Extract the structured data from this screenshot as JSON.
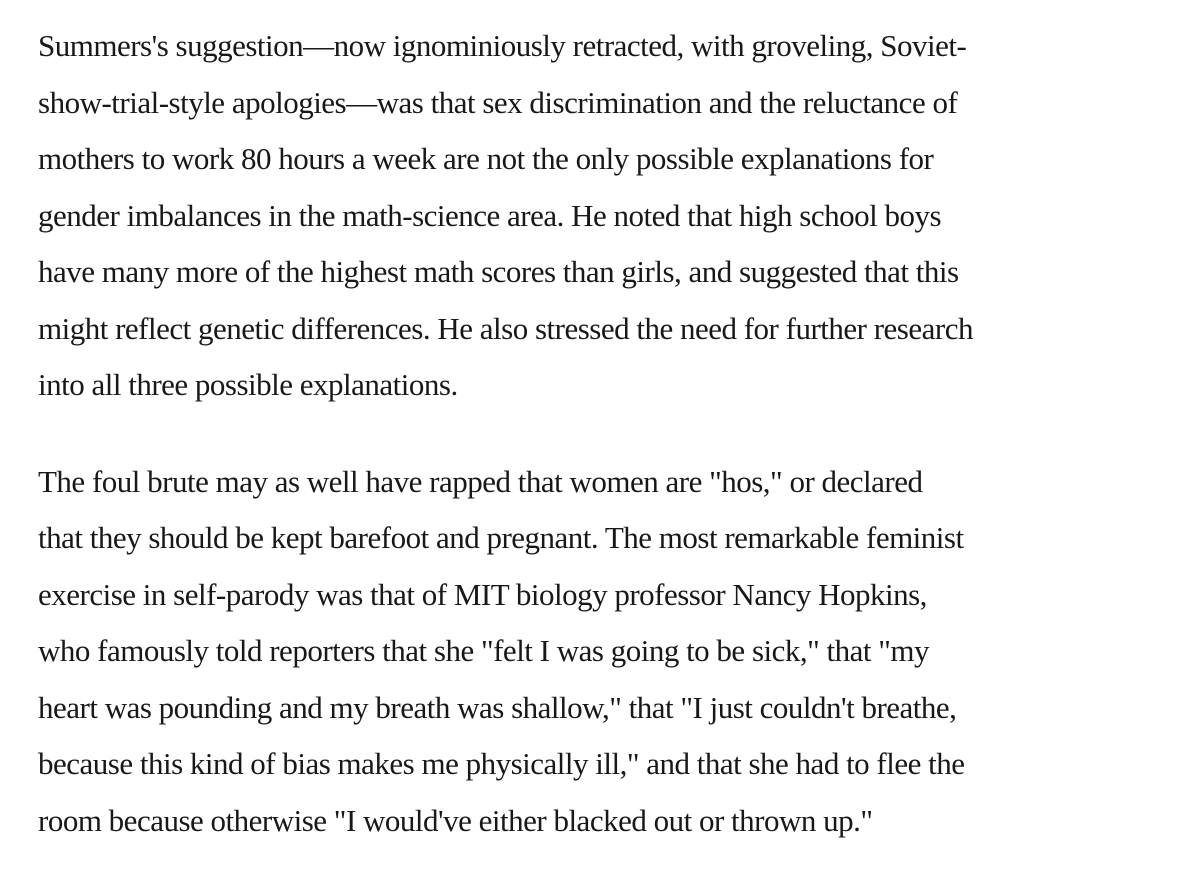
{
  "document": {
    "background_color": "#ffffff",
    "text_color": "#181818",
    "paragraphs": [
      {
        "lines": [
          "Summers's suggestion—now ignominiously retracted, with groveling, Soviet-",
          "show-trial-style apologies—was that sex discrimination and the reluctance of",
          "mothers to work 80 hours a week are not the only possible explanations for",
          "gender imbalances in the math-science area. He noted that high school boys",
          "have many more of the highest math scores than girls, and suggested that this",
          "might reflect genetic differences. He also stressed the need for further research",
          "into all three possible explanations."
        ]
      },
      {
        "lines": [
          "The foul brute may as well have rapped that women are \"hos,\" or declared",
          "that they should be kept barefoot and pregnant. The most remarkable feminist",
          "exercise in self-parody was that of MIT biology professor Nancy Hopkins,",
          "who famously told reporters that she \"felt I was going to be sick,\" that \"my",
          "heart was pounding and my breath was shallow,\" that \"I just couldn't breathe,",
          "because this kind of bias makes me physically ill,\" and that she had to flee the",
          "room because otherwise \"I would've either blacked out or thrown up.\""
        ]
      }
    ]
  }
}
